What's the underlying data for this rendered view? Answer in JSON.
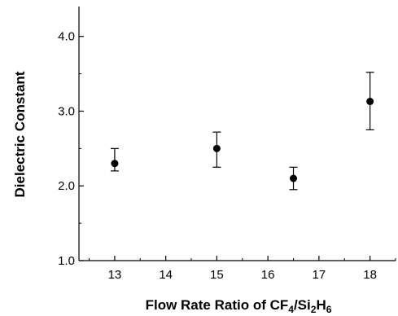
{
  "chart_data": {
    "type": "scatter",
    "title": "",
    "xlabel": {
      "parts": [
        {
          "text": "Flow Rate Ratio of CF",
          "sub": false
        },
        {
          "text": "4",
          "sub": true
        },
        {
          "text": "/Si",
          "sub": false
        },
        {
          "text": "2",
          "sub": true
        },
        {
          "text": "H",
          "sub": false
        },
        {
          "text": "6",
          "sub": true
        }
      ]
    },
    "ylabel": "Dielectric Constant",
    "xlim": [
      12.3,
      18.5
    ],
    "ylim": [
      1.0,
      4.4
    ],
    "x_ticks": [
      13,
      14,
      15,
      16,
      17,
      18
    ],
    "x_tick_labels": [
      "13",
      "14",
      "15",
      "16",
      "17",
      "18"
    ],
    "y_ticks": [
      1.0,
      2.0,
      3.0,
      4.0
    ],
    "y_tick_labels": [
      "1.0",
      "2.0",
      "3.0",
      "4.0"
    ],
    "y_minor_ticks": [
      1.5,
      2.5,
      3.5
    ],
    "grid": false,
    "legend": "none",
    "series": [
      {
        "points": [
          {
            "x": 13.0,
            "y": 2.3,
            "err_low": 2.2,
            "err_high": 2.5
          },
          {
            "x": 15.0,
            "y": 2.5,
            "err_low": 2.25,
            "err_high": 2.72
          },
          {
            "x": 16.5,
            "y": 2.1,
            "err_low": 1.95,
            "err_high": 2.25
          },
          {
            "x": 18.0,
            "y": 3.13,
            "err_low": 2.75,
            "err_high": 3.52
          }
        ]
      }
    ],
    "colors": {
      "marker": "#000000",
      "axis": "#000000"
    }
  }
}
